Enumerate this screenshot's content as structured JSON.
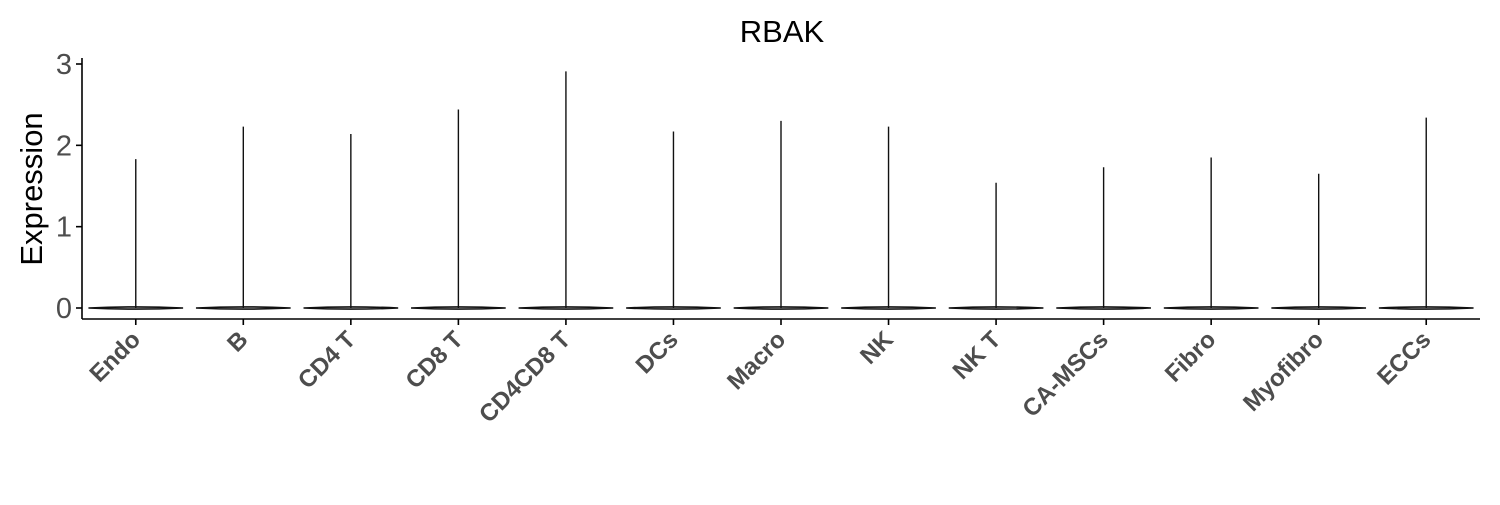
{
  "chart_data": {
    "type": "violin",
    "title": "RBAK",
    "xlabel": "",
    "ylabel": "Expression",
    "categories": [
      "Endo",
      "B",
      "CD4 T",
      "CD8 T",
      "CD4CD8 T",
      "DCs",
      "Macro",
      "NK",
      "NK T",
      "CA-MSCs",
      "Fibro",
      "Myofibro",
      "ECCs"
    ],
    "max_values": [
      1.83,
      2.23,
      2.14,
      2.44,
      2.91,
      2.17,
      2.3,
      2.23,
      1.54,
      1.73,
      1.85,
      1.65,
      2.34
    ],
    "median_values": [
      0,
      0,
      0,
      0,
      0,
      0,
      0,
      0,
      0,
      0,
      0,
      0,
      0
    ],
    "ylim": [
      0,
      3.05
    ],
    "yticks": [
      0,
      1,
      2,
      3
    ],
    "grid": false,
    "legend": "none"
  }
}
